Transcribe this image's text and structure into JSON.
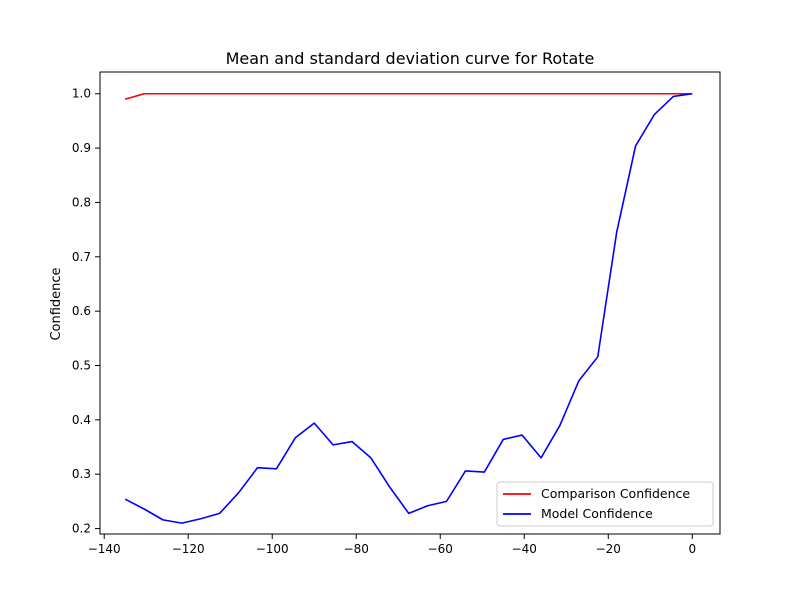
{
  "chart_data": {
    "type": "line",
    "title": "Mean and standard deviation curve for Rotate",
    "xlabel": "",
    "ylabel": "Confidence",
    "xlim": [
      -140,
      0
    ],
    "ylim": [
      0.19,
      1.04
    ],
    "xticks": [
      -140,
      -120,
      -100,
      -80,
      -60,
      -40,
      -20,
      0
    ],
    "yticks": [
      0.2,
      0.3,
      0.4,
      0.5,
      0.6,
      0.7,
      0.8,
      0.9,
      1.0
    ],
    "xtick_labels": [
      "−140",
      "−120",
      "−100",
      "−80",
      "−60",
      "−40",
      "−20",
      "0"
    ],
    "ytick_labels": [
      "0.2",
      "0.3",
      "0.4",
      "0.5",
      "0.6",
      "0.7",
      "0.8",
      "0.9",
      "1.0"
    ],
    "grid": false,
    "legend_position": "bottom-right",
    "series": [
      {
        "name": "Comparison Confidence",
        "color": "#ff0000",
        "x": [
          -135,
          -130.5,
          -126,
          -121.5,
          -117,
          -112.5,
          -108,
          -103.5,
          -99,
          -94.5,
          -90,
          -85.5,
          -81,
          -76.5,
          -72,
          -67.5,
          -63,
          -58.5,
          -54,
          -49.5,
          -45,
          -40.5,
          -36,
          -31.5,
          -27,
          -22.5,
          -18,
          -13.5,
          -9,
          -4.5,
          0
        ],
        "y": [
          0.99,
          1.0,
          1.0,
          1.0,
          1.0,
          1.0,
          1.0,
          1.0,
          1.0,
          1.0,
          1.0,
          1.0,
          1.0,
          1.0,
          1.0,
          1.0,
          1.0,
          1.0,
          1.0,
          1.0,
          1.0,
          1.0,
          1.0,
          1.0,
          1.0,
          1.0,
          1.0,
          1.0,
          1.0,
          1.0,
          1.0
        ]
      },
      {
        "name": "Model Confidence",
        "color": "#0000ff",
        "x": [
          -135,
          -130.5,
          -126,
          -121.5,
          -117,
          -112.5,
          -108,
          -103.5,
          -99,
          -94.5,
          -90,
          -85.5,
          -81,
          -76.5,
          -72,
          -67.5,
          -63,
          -58.5,
          -54,
          -49.5,
          -45,
          -40.5,
          -36,
          -31.5,
          -27,
          -22.5,
          -18,
          -13.5,
          -9,
          -4.5,
          0
        ],
        "y": [
          0.254,
          0.236,
          0.216,
          0.21,
          0.218,
          0.228,
          0.266,
          0.312,
          0.31,
          0.367,
          0.394,
          0.354,
          0.36,
          0.33,
          0.276,
          0.228,
          0.242,
          0.25,
          0.306,
          0.304,
          0.364,
          0.372,
          0.33,
          0.39,
          0.472,
          0.516,
          0.745,
          0.904,
          0.962,
          0.995,
          1.0
        ]
      }
    ]
  }
}
